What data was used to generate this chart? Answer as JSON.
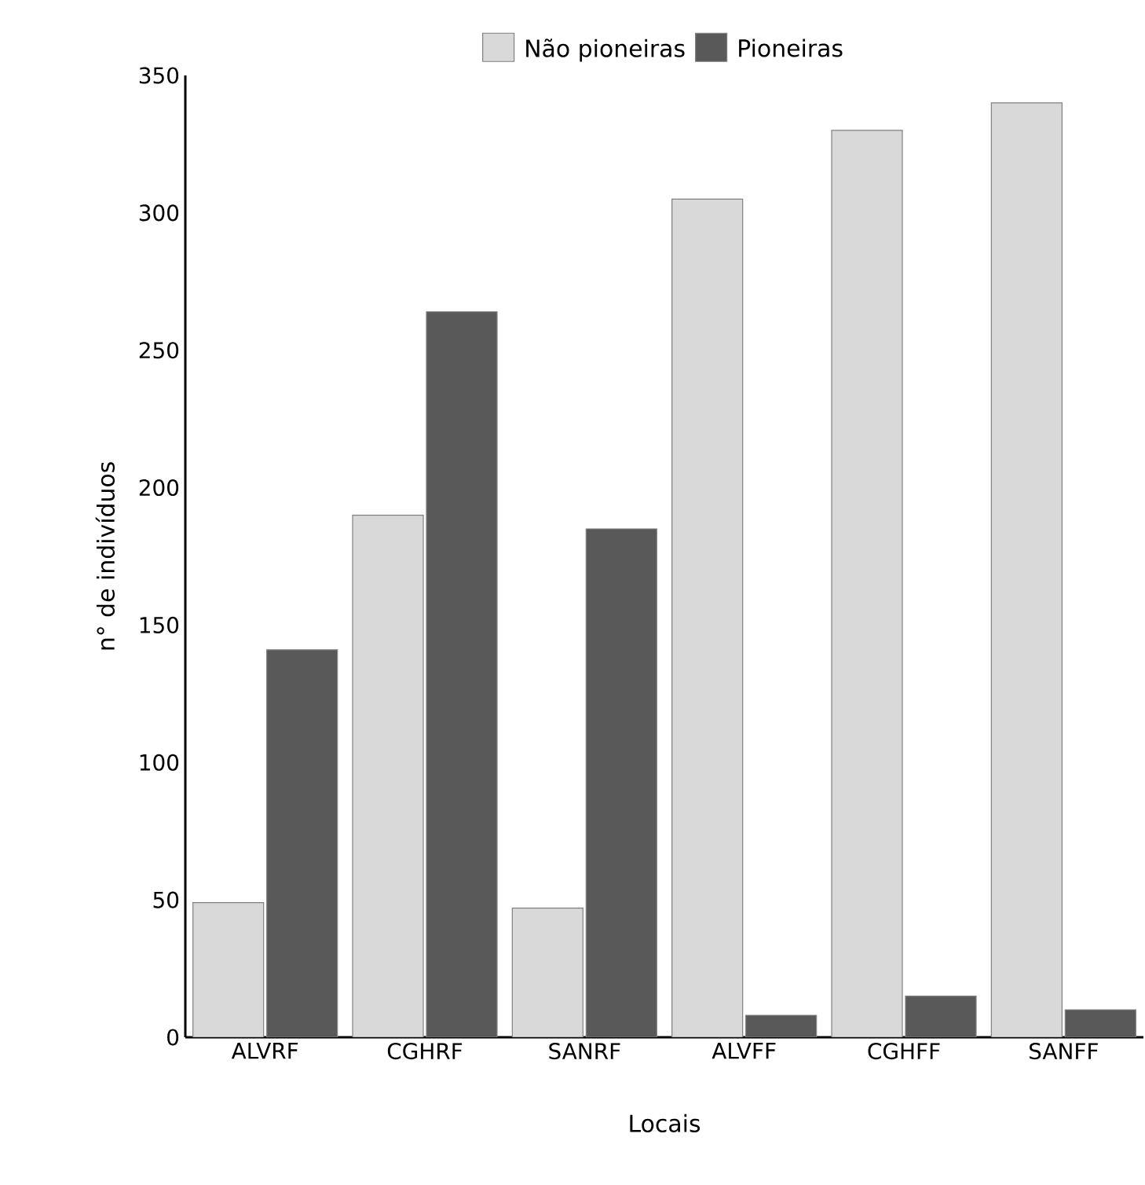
{
  "chart_data": {
    "type": "bar",
    "xlabel": "Locais",
    "ylabel": "n° de indivíduos",
    "categories": [
      "ALVRF",
      "CGHRF",
      "SANRF",
      "ALVFF",
      "CGHFF",
      "SANFF"
    ],
    "series": [
      {
        "name": "Não pioneiras",
        "color": "#d9d9d9",
        "values": [
          49,
          190,
          47,
          305,
          330,
          340
        ]
      },
      {
        "name": "Pioneiras",
        "color": "#595959",
        "values": [
          141,
          264,
          185,
          8,
          15,
          10
        ]
      }
    ],
    "ylim": [
      0,
      350
    ],
    "yticks": [
      0,
      50,
      100,
      150,
      200,
      250,
      300,
      350
    ],
    "grid": false,
    "legend": "top"
  }
}
